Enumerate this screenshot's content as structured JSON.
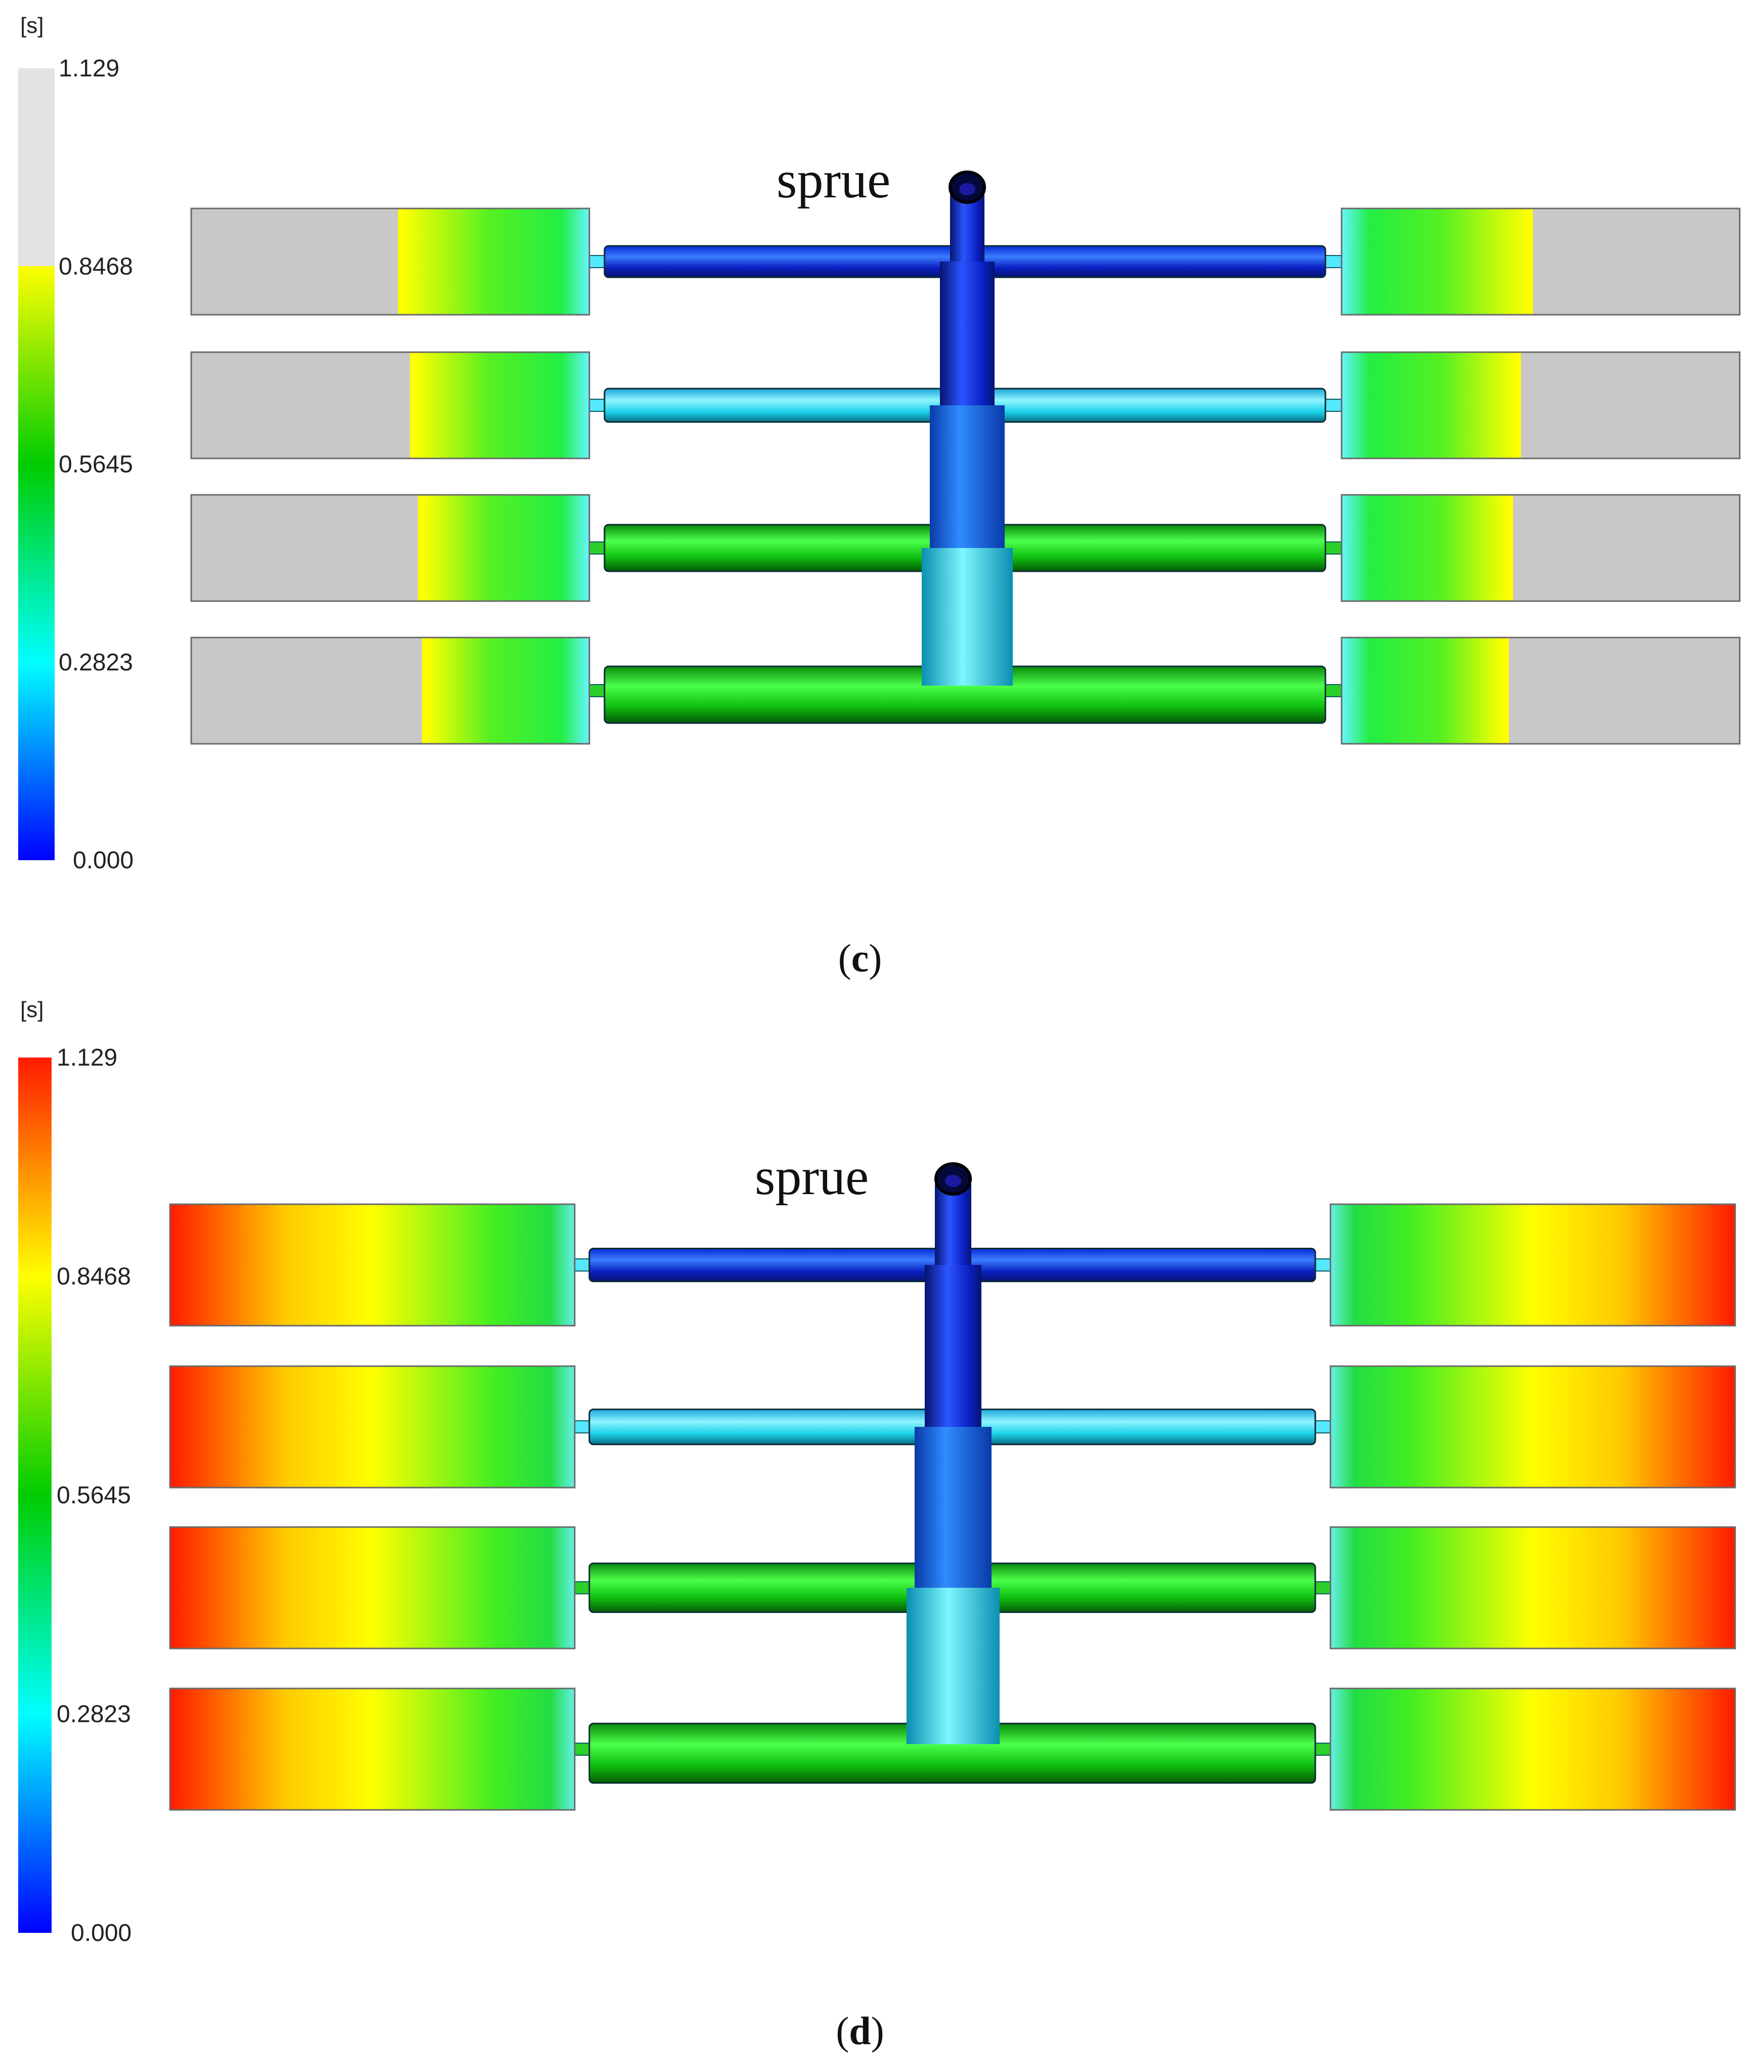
{
  "panels": [
    {
      "id": "c",
      "caption_open": "(",
      "caption_letter": "c",
      "caption_close": ")",
      "scale_unit": "[s]",
      "scale_ticks": [
        "1.129",
        "0.8468",
        "0.5645",
        "0.2823",
        "0.000"
      ],
      "sprue_label": "sprue",
      "state": "partial-fill",
      "unfilled_color": "#c8c8c8",
      "scale_top_color": "#e3e3e3"
    },
    {
      "id": "d",
      "caption_open": "(",
      "caption_letter": "d",
      "caption_close": ")",
      "scale_unit": "[s]",
      "scale_ticks": [
        "1.129",
        "0.8468",
        "0.5645",
        "0.2823",
        "0.000"
      ],
      "sprue_label": "sprue",
      "state": "full-fill",
      "unfilled_color": "",
      "scale_top_color": "#ff1a00"
    }
  ],
  "colors": {
    "t0": "#0000ff",
    "t1": "#00ffff",
    "t2": "#00cc00",
    "t3": "#ffff00",
    "t4": "#ff1a00"
  }
}
